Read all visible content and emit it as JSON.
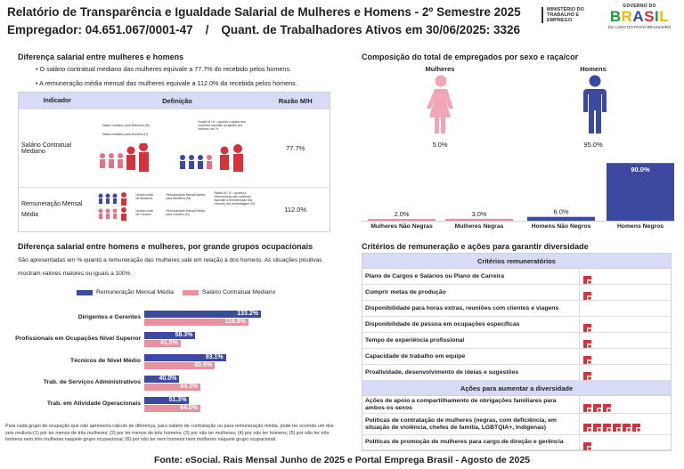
{
  "header": {
    "title": "Relatório de Transparência e Igualdade Salarial de Mulheres e Homens - 2º Semestre 2025",
    "employer": "Empregador: 04.651.067/0001-47",
    "separator": "/",
    "workers": "Quant. de Trabalhadores Ativos em 30/06/2025: 3326",
    "ministry": "MINISTÉRIO DO TRABALHO E EMPREGO",
    "gov_label": "GOVERNO DO",
    "gov_word": "BRASIL",
    "gov_tag": "DO LADO DO POVO BRASILEIRO"
  },
  "salary_gap": {
    "title": "Diferença salarial entre mulheres e homens",
    "bullets": [
      "O salário contratual mediano das mulheres equivale a 77.7% do recebido pelos homens.",
      "A remuneração média mensal das mulheres equivale a 112.0% da recebida pelos homens."
    ],
    "table": {
      "headers": [
        "Indicador",
        "Definição",
        "Razão M/H"
      ],
      "rows": [
        {
          "indicator": "Salário Contratual Mediano",
          "ratio": "77.7%",
          "def_lines": [
            "Salário mediano para Mulheres (M)",
            "Salário mediano para Homens (H)"
          ],
          "def_note": "Razão M / H = quanto o salário das mulheres equivale ao salário dos homens, em %"
        },
        {
          "indicator": "Remuneração Mensal Média",
          "ratio": "112.0%",
          "def_lines": [
            "Número total de Mulheres",
            "Número total de Homens"
          ],
          "def_mid": [
            "Remuneração Mensal Média para Mulheres (M)",
            "Remuneração Mensal Média para Homens (H)"
          ],
          "def_note": "Razão M / H = quanto a remuneração das mulheres equivale à remuneração dos homens, em porcentagem (%)"
        }
      ]
    }
  },
  "composition": {
    "title": "Composição do total de empregados por sexo e raça/cor",
    "women_label": "Mulheres",
    "men_label": "Homens",
    "women_pct": "5.0%",
    "men_pct": "95.0%",
    "chart_data": {
      "type": "bar",
      "title": "Composição do total de empregados por sexo e raça/cor",
      "categories": [
        "Mulheres Não Negras",
        "Mulheres Negras",
        "Homens Não Negros",
        "Homens Negros"
      ],
      "values": [
        2.0,
        3.0,
        6.0,
        90.0
      ],
      "value_labels": [
        "2.0%",
        "3.0%",
        "6.0%",
        "90.0%"
      ],
      "colors": [
        "#e8929f",
        "#e8929f",
        "#3b4aa0",
        "#3b4aa0"
      ],
      "ylim": [
        0,
        100
      ]
    }
  },
  "occupations": {
    "title": "Diferença salarial entre homens e mulheres, por grande grupos ocupacionais",
    "description": [
      "São apresentadas em % quanto a remuneração das mulheres vale em relação à dos homens. As situações positivas",
      "mostram valores maiores ou iguais a 100%"
    ],
    "chart_data": {
      "type": "bar",
      "orientation": "horizontal",
      "categories": [
        "Dirigentes e Gerentes",
        "Profissionais em Ocupações Nível Superior",
        "Técnicos de Nível Médio",
        "Trab. de Serviços Administrativos",
        "Trab. em Atividade Operacionais"
      ],
      "series": [
        {
          "name": "Remuneração Mensal Média",
          "color": "#3b4aa0",
          "values": [
            133.2,
            58.3,
            93.1,
            40.0,
            51.3
          ],
          "labels": [
            "133.2%",
            "58.3%",
            "93.1%",
            "40.0%",
            "51.3%"
          ]
        },
        {
          "name": "Salário Contratual Mediano",
          "color": "#e8929f",
          "values": [
            118.9,
            41.5,
            80.6,
            64.3,
            64.0
          ],
          "labels": [
            "118.9%",
            "41.5%",
            "80.6%",
            "64.3%",
            "64.0%"
          ]
        }
      ],
      "xlim": [
        0,
        140
      ]
    },
    "note": "Para cada grupo de ocupação que não apresenta cálculo de diferença, para salário de contratação ou para remuneração média, pode ter ocorrido um dos seis motivos:(1) por ter menos de três mulheres; (2) por ter menos de três homens; (3) por não ter mulheres; (4) por não ter homens; (5) por não ter três homens nem três mulheres naquele grupo ocupacional; (6) por não ter nem homens nem mulheres naquele grupo ocupacional"
  },
  "criteria": {
    "title": "Critérios de remuneração e ações para garantir diversidade",
    "section1": "Critérios remuneratórios",
    "section2": "Ações para aumentar a diversidade",
    "flag_color": "#d3333a",
    "rows1": [
      {
        "label": "Plano de Cargos e Salários ou Plano de Carreira",
        "flags": 1
      },
      {
        "label": "Cumprir metas de produção",
        "flags": 1
      },
      {
        "label": "Disponibilidade para horas extras, reuniões com clientes e viagens",
        "flags": 0
      },
      {
        "label": "Disponibilidade de pessoa em ocupações específicas",
        "flags": 1
      },
      {
        "label": "Tempo de experiência profissional",
        "flags": 1
      },
      {
        "label": "Capacidade de trabalho em equipe",
        "flags": 1
      },
      {
        "label": "Proatividade, desenvolvimento de ideias e sugestões",
        "flags": 1
      }
    ],
    "rows2": [
      {
        "label": "Ações de apoio a compartilhamento de obrigações familiares para ambos os sexos",
        "flags": 3
      },
      {
        "label": "Políticas de contratação de mulheres (negras, com deficiência, em situação de violência, chefes de família, LGBTQIA+, Indígenas)",
        "flags": 6
      },
      {
        "label": "Políticas de promoção de mulheres para cargo de direção e gerência",
        "flags": 1
      }
    ]
  },
  "footer": "Fonte: eSocial. Rais Mensal Junho de 2025 e Portal Emprega Brasil - Agosto de 2025"
}
